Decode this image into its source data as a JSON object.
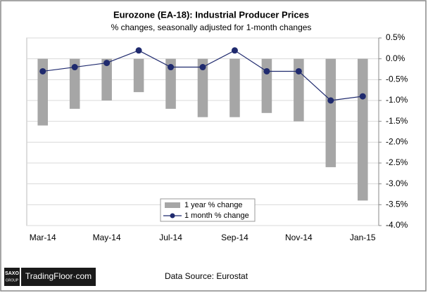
{
  "chart_data": {
    "type": "bar_line",
    "title": "Eurozone (EA-18): Industrial Producer Prices",
    "subtitle": "% changes, seasonally adjusted for 1-month changes",
    "categories": [
      "Mar-14",
      null,
      "May-14",
      null,
      "Jul-14",
      null,
      "Sep-14",
      null,
      "Nov-14",
      null,
      "Jan-15"
    ],
    "series": [
      {
        "name": "1 year % change",
        "type": "bar",
        "color": "#a6a6a6",
        "values": [
          -1.6,
          -1.2,
          -1.0,
          -0.8,
          -1.2,
          -1.4,
          -1.4,
          -1.3,
          -1.5,
          -2.6,
          -3.4
        ]
      },
      {
        "name": "1 month % change",
        "type": "line",
        "color": "#1f2a6e",
        "values": [
          -0.3,
          -0.2,
          -0.1,
          0.2,
          -0.2,
          -0.2,
          0.2,
          -0.3,
          -0.3,
          -1.0,
          -0.9
        ]
      }
    ],
    "ylim": [
      -4.0,
      0.5
    ],
    "yticks": [
      {
        "value": 0.5,
        "label": "0.5%"
      },
      {
        "value": 0.0,
        "label": "0.0%"
      },
      {
        "value": -0.5,
        "label": "-0.5%"
      },
      {
        "value": -1.0,
        "label": "-1.0%"
      },
      {
        "value": -1.5,
        "label": "-1.5%"
      },
      {
        "value": -2.0,
        "label": "-2.0%"
      },
      {
        "value": -2.5,
        "label": "-2.5%"
      },
      {
        "value": -3.0,
        "label": "-3.0%"
      },
      {
        "value": -3.5,
        "label": "-3.5%"
      },
      {
        "value": -4.0,
        "label": "-4.0%"
      }
    ],
    "grid": true,
    "legend": "bottom-center"
  },
  "footer": {
    "logo_top": "SAXO",
    "logo_bottom": "GROUP",
    "brand": "TradingFloor·com",
    "source": "Data Source: Eurostat"
  }
}
